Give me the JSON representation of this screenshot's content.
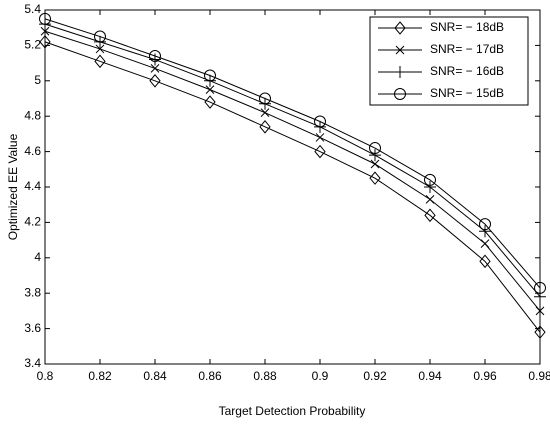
{
  "chart_data": {
    "type": "line",
    "x_label": "Target Detection Probability",
    "y_label": "Optimized EE Value",
    "x": [
      0.8,
      0.82,
      0.84,
      0.86,
      0.88,
      0.9,
      0.92,
      0.94,
      0.96,
      0.98
    ],
    "xlim": [
      0.8,
      0.98
    ],
    "xticks": [
      0.8,
      0.82,
      0.84,
      0.86,
      0.88,
      0.9,
      0.92,
      0.94,
      0.96,
      0.98
    ],
    "ylim": [
      3.4,
      5.4
    ],
    "yticks": [
      3.4,
      3.6,
      3.8,
      4,
      4.2,
      4.4,
      4.6,
      4.8,
      5,
      5.2,
      5.4
    ],
    "legend": "upper right",
    "series": [
      {
        "name": "SNR= − 18dB",
        "color": "#000000",
        "marker": "diamond",
        "values": [
          5.22,
          5.11,
          5.0,
          4.88,
          4.74,
          4.6,
          4.45,
          4.24,
          3.98,
          3.58
        ]
      },
      {
        "name": "SNR= − 17dB",
        "color": "#000000",
        "marker": "x",
        "values": [
          5.28,
          5.18,
          5.07,
          4.95,
          4.82,
          4.68,
          4.53,
          4.33,
          4.08,
          3.7
        ]
      },
      {
        "name": "SNR= − 16dB",
        "color": "#000000",
        "marker": "plus",
        "values": [
          5.32,
          5.22,
          5.12,
          5.0,
          4.87,
          4.74,
          4.58,
          4.4,
          4.15,
          3.78
        ]
      },
      {
        "name": "SNR= − 15dB",
        "color": "#000000",
        "marker": "circle",
        "values": [
          5.35,
          5.25,
          5.14,
          5.03,
          4.9,
          4.77,
          4.62,
          4.44,
          4.19,
          3.83
        ]
      }
    ]
  }
}
